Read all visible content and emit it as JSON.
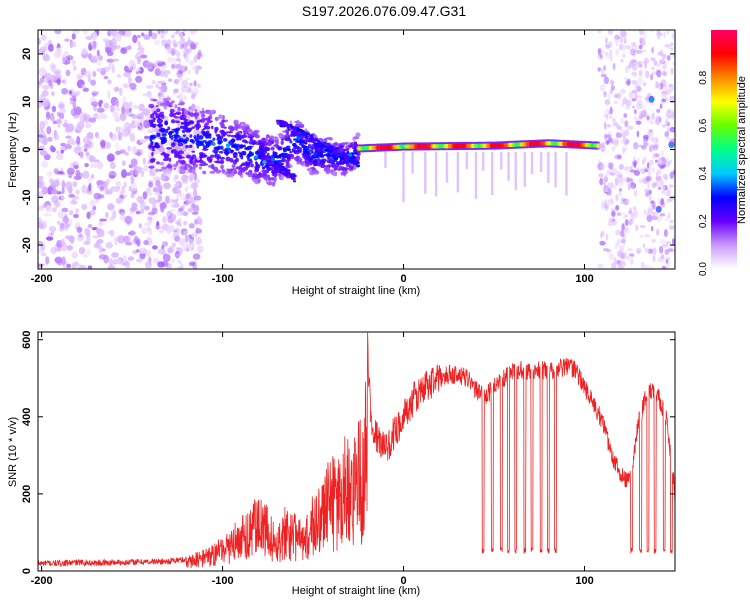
{
  "title": "S197.2026.076.09.47.G31",
  "chart_data": [
    {
      "type": "heatmap",
      "name": "spectrogram",
      "xlabel": "Height of straight line (km)",
      "ylabel": "Frequency (Hz)",
      "xlim": [
        -202,
        150
      ],
      "ylim": [
        -25,
        25
      ],
      "xticks": [
        -200,
        -100,
        0,
        100
      ],
      "yticks": [
        -20,
        -10,
        0,
        10,
        20
      ],
      "colorbar": {
        "label": "Normalized spectral amplitude",
        "ticks": [
          "0.0",
          "0.2",
          "0.4",
          "0.6",
          "0.8"
        ],
        "tick_values": [
          0.0,
          0.2,
          0.4,
          0.6,
          0.8
        ],
        "range": [
          0,
          1
        ],
        "colors": [
          "#ffffff",
          "#cc99ff",
          "#6600ff",
          "#0000ff",
          "#00ccff",
          "#00ff88",
          "#66ff00",
          "#ffff00",
          "#ff8800",
          "#ff0000",
          "#ff0066"
        ]
      },
      "ridge": [
        {
          "x": -130,
          "f": 3.0
        },
        {
          "x": -100,
          "f": 1.0
        },
        {
          "x": -90,
          "f": 0.0
        },
        {
          "x": -80,
          "f": -1.5
        },
        {
          "x": -70,
          "f": -2.5
        },
        {
          "x": -60,
          "f": 2.0
        },
        {
          "x": -50,
          "f": -1.0
        },
        {
          "x": -40,
          "f": -1.5
        },
        {
          "x": -30,
          "f": -2.0
        },
        {
          "x": -25,
          "f": 0.2
        },
        {
          "x": 0,
          "f": 0.6
        },
        {
          "x": 50,
          "f": 0.8
        },
        {
          "x": 80,
          "f": 1.3
        },
        {
          "x": 108,
          "f": 0.8
        }
      ],
      "tone_points": [
        {
          "x": 137,
          "f": 10.5
        },
        {
          "x": 141,
          "f": -12.5
        },
        {
          "x": 148,
          "f": 1.0
        }
      ]
    },
    {
      "type": "line",
      "name": "snr",
      "xlabel": "Height of straight line (km)",
      "ylabel": "SNR (10 * v/v)",
      "xlim": [
        -202,
        150
      ],
      "ylim": [
        0,
        620
      ],
      "xticks": [
        -200,
        -100,
        0,
        100
      ],
      "yticks": [
        0,
        200,
        400,
        600
      ],
      "color": "#ee2222",
      "series": [
        {
          "name": "SNR",
          "x": [
            -202,
            -190,
            -180,
            -170,
            -160,
            -150,
            -140,
            -130,
            -125,
            -120,
            -110,
            -100,
            -90,
            -85,
            -80,
            -75,
            -70,
            -65,
            -60,
            -55,
            -50,
            -45,
            -40,
            -35,
            -30,
            -25,
            -22,
            -20,
            -18,
            -15,
            -10,
            -5,
            0,
            5,
            10,
            15,
            20,
            25,
            30,
            35,
            40,
            42,
            45,
            50,
            60,
            70,
            80,
            90,
            95,
            100,
            105,
            110,
            115,
            120,
            125,
            130,
            135,
            140,
            145,
            150
          ],
          "values": [
            20,
            20,
            22,
            21,
            22,
            23,
            24,
            25,
            28,
            30,
            45,
            70,
            110,
            140,
            150,
            130,
            90,
            140,
            120,
            90,
            160,
            200,
            230,
            250,
            290,
            320,
            340,
            600,
            380,
            350,
            310,
            360,
            400,
            440,
            470,
            490,
            500,
            510,
            510,
            500,
            470,
            460,
            450,
            480,
            520,
            520,
            520,
            530,
            520,
            480,
            430,
            390,
            300,
            250,
            230,
            390,
            470,
            460,
            400,
            200
          ],
          "dropouts": [
            44,
            49,
            54,
            58,
            62,
            67,
            71,
            76,
            80,
            84,
            126,
            131,
            135,
            139,
            144,
            148
          ],
          "dropout_level": 45
        }
      ]
    }
  ]
}
